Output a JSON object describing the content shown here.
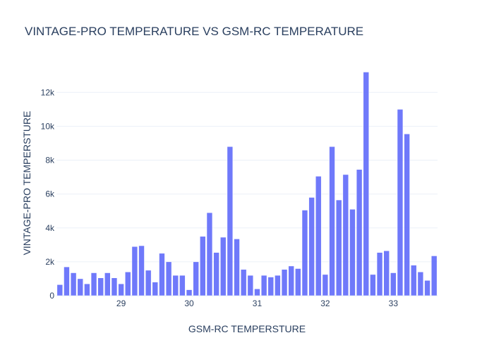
{
  "chart_data": {
    "type": "bar",
    "title": "VINTAGE-PRO TEMPERATURE VS GSM-RC TEMPERATURE",
    "xlabel": "GSM-RC TEMPERSTURE",
    "ylabel": "VINTAGE-PRO TEMPERSTURE",
    "bar_color": "#636efa",
    "xlim": [
      28.05,
      33.65
    ],
    "ylim": [
      0,
      13300
    ],
    "xticks": [
      29,
      30,
      31,
      32,
      33
    ],
    "xtick_labels": [
      "29",
      "30",
      "31",
      "32",
      "33"
    ],
    "yticks": [
      0,
      2000,
      4000,
      6000,
      8000,
      10000,
      12000
    ],
    "ytick_labels": [
      "0",
      "2k",
      "4k",
      "6k",
      "8k",
      "10k",
      "12k"
    ],
    "grid": true,
    "x": [
      28.1,
      28.2,
      28.3,
      28.4,
      28.5,
      28.6,
      28.7,
      28.8,
      28.9,
      29.0,
      29.1,
      29.2,
      29.3,
      29.4,
      29.5,
      29.6,
      29.7,
      29.8,
      29.9,
      30.0,
      30.1,
      30.2,
      30.3,
      30.4,
      30.5,
      30.6,
      30.7,
      30.8,
      30.9,
      31.0,
      31.1,
      31.2,
      31.3,
      31.4,
      31.5,
      31.6,
      31.7,
      31.8,
      31.9,
      32.0,
      32.1,
      32.2,
      32.3,
      32.4,
      32.5,
      32.6,
      32.7,
      32.8,
      32.9,
      33.0,
      33.1,
      33.2,
      33.3,
      33.4,
      33.5,
      33.6
    ],
    "values": [
      650,
      1700,
      1350,
      1000,
      700,
      1350,
      1050,
      1350,
      1050,
      700,
      1400,
      2900,
      2950,
      1500,
      800,
      2500,
      2000,
      1200,
      1200,
      350,
      2000,
      3500,
      4900,
      2550,
      3450,
      8800,
      3350,
      1550,
      1200,
      400,
      1200,
      1100,
      1200,
      1550,
      1750,
      1600,
      5050,
      5800,
      7050,
      1250,
      8800,
      5650,
      7150,
      5100,
      7450,
      13200,
      1250,
      2550,
      2650,
      1350,
      11000,
      9550,
      1800,
      1400,
      900,
      2350
    ]
  }
}
